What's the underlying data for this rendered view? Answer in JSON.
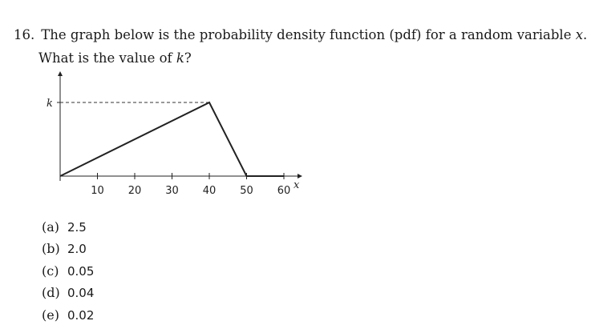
{
  "question": {
    "number": "16.",
    "text_before": "The graph below is the probability density function (pdf) for a random variable ",
    "var_x": "x",
    "text_after": ".",
    "line2_before": "What is the value of ",
    "var_k": "k",
    "line2_after": "?"
  },
  "graph": {
    "y_label": "k",
    "x_label": "x",
    "x_ticks": [
      "10",
      "20",
      "30",
      "40",
      "50",
      "60"
    ],
    "pdf_points": [
      {
        "x": 0,
        "y": 0
      },
      {
        "x": 40,
        "y": 1
      },
      {
        "x": 50,
        "y": 0
      },
      {
        "x": 60,
        "y": 0
      }
    ],
    "y_units": "fraction of k"
  },
  "choices": [
    {
      "label": "(a)",
      "value": "2.5"
    },
    {
      "label": "(b)",
      "value": "2.0"
    },
    {
      "label": "(c)",
      "value": "0.05"
    },
    {
      "label": "(d)",
      "value": "0.04"
    },
    {
      "label": "(e)",
      "value": "0.02"
    }
  ]
}
